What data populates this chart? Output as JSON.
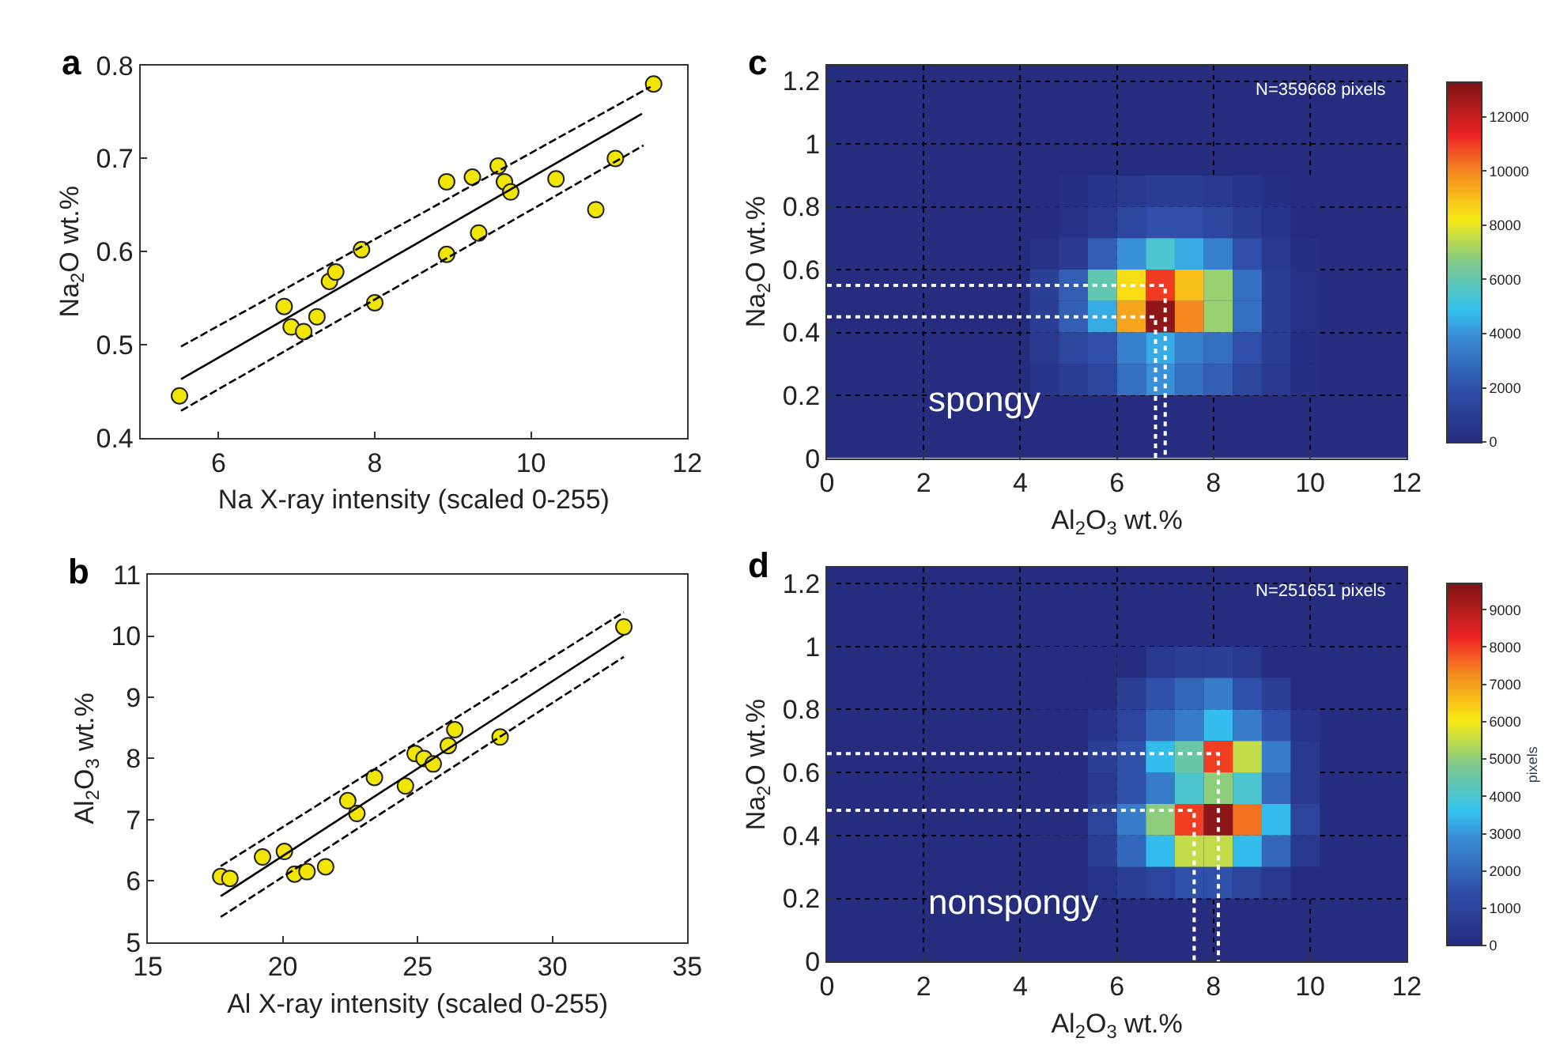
{
  "chart_data": [
    {
      "type": "scatter",
      "title": "a",
      "xlabel": "Na X-ray intensity (scaled 0-255)",
      "ylabel": "Na$_{2}$O wt.%",
      "xlim": [
        5,
        12
      ],
      "xticks": [
        6,
        8,
        10,
        12
      ],
      "ylim": [
        0.4,
        0.8
      ],
      "yticks": [
        0.4,
        0.5,
        0.6,
        0.7,
        0.8
      ],
      "grid": false,
      "marker": "circle",
      "series": [
        {
          "color": "#f2e600",
          "x": [
            5.5,
            6.84,
            6.93,
            7.09,
            7.26,
            7.42,
            7.5,
            7.83,
            8.0,
            8.92,
            8.92,
            9.25,
            9.33,
            9.58,
            9.66,
            9.74,
            10.32,
            10.83,
            11.08,
            11.57
          ],
          "values": [
            0.445,
            0.541,
            0.519,
            0.514,
            0.53,
            0.568,
            0.578,
            0.602,
            0.545,
            0.675,
            0.597,
            0.68,
            0.62,
            0.692,
            0.675,
            0.664,
            0.678,
            0.645,
            0.7,
            0.78
          ]
        },
        {
          "type": "line",
          "color": "#000000",
          "line_style": "solid",
          "marker": "none",
          "x": [
            5.52,
            11.42
          ],
          "values": [
            0.463,
            0.748
          ]
        },
        {
          "type": "line",
          "color": "#000000",
          "line_style": "dashed",
          "marker": "none",
          "x": [
            5.52,
            11.53
          ],
          "values": [
            0.498,
            0.777
          ]
        },
        {
          "type": "line",
          "color": "#000000",
          "line_style": "dashed",
          "marker": "none",
          "x": [
            5.52,
            11.44
          ],
          "values": [
            0.429,
            0.714
          ]
        }
      ]
    },
    {
      "type": "scatter",
      "title": "b",
      "xlabel": "Al X-ray intensity (scaled 0-255)",
      "ylabel": "Al$_{2}$O$_{3}$ wt.%",
      "xlim": [
        15,
        35
      ],
      "xticks": [
        15,
        20,
        25,
        30,
        35
      ],
      "ylim": [
        5,
        11
      ],
      "yticks": [
        5,
        6,
        7,
        8,
        9,
        10,
        11
      ],
      "grid": false,
      "marker": "circle",
      "series": [
        {
          "color": "#f2e600",
          "x": [
            17.7,
            18.04,
            19.25,
            20.06,
            20.44,
            20.9,
            21.59,
            22.41,
            22.75,
            23.4,
            24.55,
            24.91,
            25.24,
            25.58,
            26.14,
            26.38,
            28.06,
            32.65
          ],
          "values": [
            6.07,
            6.04,
            6.39,
            6.48,
            6.11,
            6.15,
            6.23,
            7.31,
            7.1,
            7.69,
            7.55,
            8.08,
            8.0,
            7.91,
            8.21,
            8.47,
            8.35,
            10.15
          ]
        },
        {
          "type": "line",
          "color": "#000000",
          "line_style": "solid",
          "marker": "none",
          "x": [
            17.7,
            32.65
          ],
          "values": [
            5.75,
            10.02
          ]
        },
        {
          "type": "line",
          "color": "#000000",
          "line_style": "dashed",
          "marker": "none",
          "x": [
            17.7,
            32.65
          ],
          "values": [
            6.24,
            10.39
          ]
        },
        {
          "type": "line",
          "color": "#000000",
          "line_style": "dashed",
          "marker": "none",
          "x": [
            17.7,
            32.65
          ],
          "values": [
            5.41,
            9.66
          ]
        }
      ]
    },
    {
      "type": "heatmap",
      "title": "c",
      "xlabel": "Al$_{2}$O$_{3}$ wt.%",
      "ylabel": "Na$_{2}$O wt.%",
      "xlim": [
        0,
        12
      ],
      "xticks": [
        0,
        2,
        4,
        6,
        8,
        10,
        12
      ],
      "ylim": [
        0,
        1.25
      ],
      "yticks": [
        0,
        0.2,
        0.4,
        0.6,
        0.8,
        1,
        1.2
      ],
      "grid": true,
      "clim": [
        0,
        13300
      ],
      "cticks": [
        0,
        2000,
        4000,
        6000,
        8000,
        10000,
        12000
      ],
      "annotations": [
        "N=359668 pixels",
        "spongy"
      ],
      "x": [
        4.5,
        5.1,
        5.7,
        6.3,
        6.9,
        7.5,
        8.1,
        8.7,
        9.3,
        9.9
      ],
      "y": [
        0.85,
        0.75,
        0.65,
        0.55,
        0.45,
        0.35,
        0.25
      ],
      "cells": [
        [
          0,
          200,
          500,
          800,
          1000,
          1000,
          800,
          500,
          200,
          0
        ],
        [
          0,
          300,
          800,
          1500,
          2000,
          2000,
          1500,
          1000,
          500,
          0
        ],
        [
          300,
          800,
          2500,
          4000,
          5500,
          4500,
          3500,
          2000,
          800,
          200
        ],
        [
          1200,
          2500,
          6000,
          8500,
          11000,
          9000,
          7000,
          3000,
          1000,
          300
        ],
        [
          1000,
          2500,
          4500,
          9500,
          13000,
          10000,
          7000,
          3000,
          1000,
          300
        ],
        [
          800,
          1500,
          2000,
          3500,
          4500,
          3500,
          3000,
          2000,
          1000,
          200
        ],
        [
          500,
          1000,
          1500,
          3000,
          4000,
          3000,
          2500,
          1500,
          800,
          200
        ]
      ],
      "series": [
        {
          "type": "line",
          "color": "#ffffff",
          "line_style": "dotted",
          "marker": "none",
          "x": [
            0,
            7.0,
            7.0
          ],
          "values": [
            0.55,
            0.55,
            0
          ]
        },
        {
          "type": "line",
          "color": "#ffffff",
          "line_style": "dotted",
          "marker": "none",
          "x": [
            0,
            6.8,
            6.8
          ],
          "values": [
            0.45,
            0.45,
            0
          ]
        }
      ]
    },
    {
      "type": "heatmap",
      "title": "d",
      "xlabel": "Al$_{2}$O$_{3}$ wt.%",
      "ylabel": "Na$_{2}$O wt.%",
      "xlim": [
        0,
        12
      ],
      "xticks": [
        0,
        2,
        4,
        6,
        8,
        10,
        12
      ],
      "ylim": [
        0,
        1.25
      ],
      "yticks": [
        0,
        0.2,
        0.4,
        0.6,
        0.8,
        1,
        1.2
      ],
      "grid": true,
      "clim": [
        0,
        9700
      ],
      "cticks": [
        0,
        1000,
        2000,
        3000,
        4000,
        5000,
        6000,
        7000,
        8000,
        9000
      ],
      "clabel": "pixels",
      "annotations": [
        "N=251651 pixels",
        "nonspongy"
      ],
      "x": [
        4.5,
        5.1,
        5.7,
        6.3,
        6.9,
        7.5,
        8.1,
        8.7,
        9.3,
        9.9
      ],
      "y": [
        0.95,
        0.85,
        0.75,
        0.65,
        0.55,
        0.45,
        0.35,
        0.25
      ],
      "cells": [
        [
          0,
          0,
          0,
          0,
          500,
          800,
          800,
          500,
          0,
          0
        ],
        [
          0,
          0,
          0,
          800,
          1500,
          2000,
          2500,
          1500,
          800,
          0
        ],
        [
          0,
          0,
          300,
          1000,
          2000,
          2500,
          3500,
          2500,
          1500,
          300
        ],
        [
          0,
          0,
          800,
          1500,
          3500,
          4500,
          8000,
          5500,
          2500,
          500
        ],
        [
          0,
          0,
          500,
          1500,
          2500,
          4000,
          5000,
          4000,
          2000,
          500
        ],
        [
          0,
          0,
          1000,
          2500,
          5000,
          8000,
          9500,
          7500,
          3500,
          1000
        ],
        [
          0,
          0,
          800,
          2000,
          3500,
          5500,
          5500,
          3500,
          2000,
          500
        ],
        [
          0,
          0,
          300,
          800,
          1000,
          1500,
          1500,
          1000,
          500,
          0
        ]
      ],
      "series": [
        {
          "type": "line",
          "color": "#ffffff",
          "line_style": "dotted",
          "marker": "none",
          "x": [
            0,
            8.1,
            8.1
          ],
          "values": [
            0.66,
            0.66,
            0
          ]
        },
        {
          "type": "line",
          "color": "#ffffff",
          "line_style": "dotted",
          "marker": "none",
          "x": [
            0,
            7.6,
            7.6
          ],
          "values": [
            0.48,
            0.48,
            0
          ]
        }
      ]
    }
  ]
}
